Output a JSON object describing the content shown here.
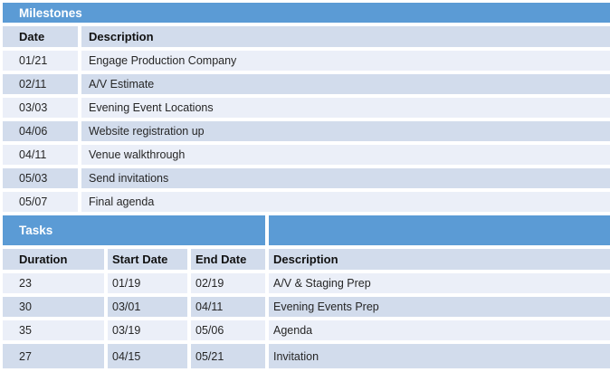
{
  "theme": {
    "accent_blue": "#5b9bd5",
    "band_dark": "#d2dcec",
    "band_light": "#ebeff8",
    "title_text_color": "#ffffff"
  },
  "milestones": {
    "title": "Milestones",
    "columns": {
      "date": "Date",
      "description": "Description"
    },
    "rows": [
      {
        "date": "01/21",
        "description": "Engage Production Company"
      },
      {
        "date": "02/11",
        "description": "A/V Estimate"
      },
      {
        "date": "03/03",
        "description": "Evening Event Locations"
      },
      {
        "date": "04/06",
        "description": "Website registration up"
      },
      {
        "date": "04/11",
        "description": "Venue walkthrough"
      },
      {
        "date": "05/03",
        "description": "Send invitations"
      },
      {
        "date": "05/07",
        "description": "Final agenda"
      }
    ]
  },
  "tasks": {
    "title": "Tasks",
    "columns": {
      "duration": "Duration",
      "start_date": "Start Date",
      "end_date": "End Date",
      "description": "Description"
    },
    "rows": [
      {
        "duration": "23",
        "start_date": "01/19",
        "end_date": "02/19",
        "description": "A/V & Staging Prep"
      },
      {
        "duration": "30",
        "start_date": "03/01",
        "end_date": "04/11",
        "description": "Evening Events Prep"
      },
      {
        "duration": "35",
        "start_date": "03/19",
        "end_date": "05/06",
        "description": "Agenda"
      },
      {
        "duration": "27",
        "start_date": "04/15",
        "end_date": "05/21",
        "description": "Invitation"
      }
    ]
  }
}
